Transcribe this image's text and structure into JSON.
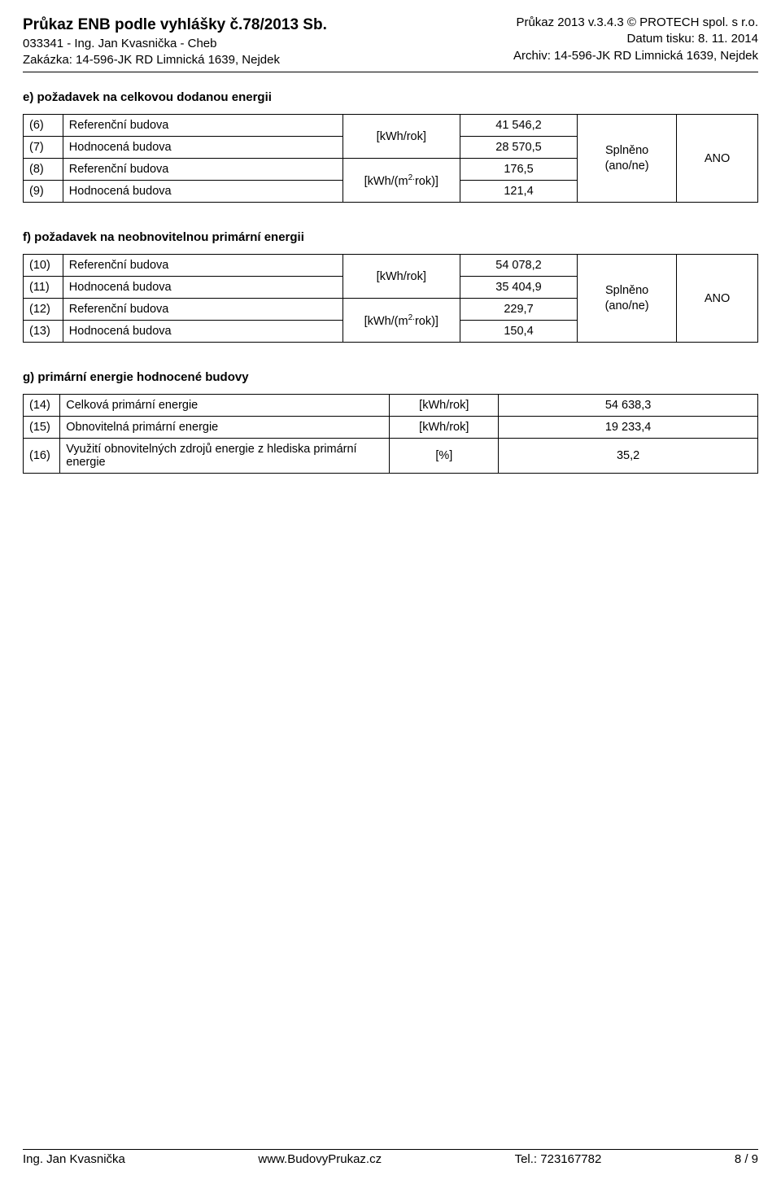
{
  "header": {
    "title_left": "Průkaz ENB podle vyhlášky č.78/2013 Sb.",
    "title_right": "Průkaz 2013 v.3.4.3 © PROTECH spol. s r.o.",
    "line2_left": "033341 - Ing. Jan Kvasnička - Cheb",
    "line2_right": "Datum tisku: 8. 11. 2014",
    "line3_left": "Zakázka: 14-596-JK RD Limnická 1639, Nejdek",
    "line3_right": "Archiv: 14-596-JK RD Limnická 1639, Nejdek"
  },
  "section_e": {
    "title": "e) požadavek na celkovou dodanou energii",
    "rows": [
      {
        "n": "(6)",
        "label": "Referenční budova",
        "val": "41 546,2"
      },
      {
        "n": "(7)",
        "label": "Hodnocená budova",
        "val": "28 570,5"
      },
      {
        "n": "(8)",
        "label": "Referenční budova",
        "val": "176,5"
      },
      {
        "n": "(9)",
        "label": "Hodnocená budova",
        "val": "121,4"
      }
    ],
    "unit1": "[kWh/rok]",
    "unit2_pre": "[kWh/(m",
    "unit2_sup": "2.",
    "unit2_post": "rok)]",
    "splneno_l1": "Splněno",
    "splneno_l2": "(ano/ne)",
    "result": "ANO"
  },
  "section_f": {
    "title": "f) požadavek na neobnovitelnou primární energii",
    "rows": [
      {
        "n": "(10)",
        "label": "Referenční budova",
        "val": "54 078,2"
      },
      {
        "n": "(11)",
        "label": "Hodnocená budova",
        "val": "35 404,9"
      },
      {
        "n": "(12)",
        "label": "Referenční budova",
        "val": "229,7"
      },
      {
        "n": "(13)",
        "label": "Hodnocená budova",
        "val": "150,4"
      }
    ],
    "unit1": "[kWh/rok]",
    "unit2_pre": "[kWh/(m",
    "unit2_sup": "2.",
    "unit2_post": "rok)]",
    "splneno_l1": "Splněno",
    "splneno_l2": "(ano/ne)",
    "result": "ANO"
  },
  "section_g": {
    "title": "g) primární energie hodnocené budovy",
    "rows": [
      {
        "n": "(14)",
        "label": "Celková primární energie",
        "unit": "[kWh/rok]",
        "val": "54 638,3"
      },
      {
        "n": "(15)",
        "label": "Obnovitelná primární energie",
        "unit": "[kWh/rok]",
        "val": "19 233,4"
      },
      {
        "n": "(16)",
        "label": "Využití obnovitelných zdrojů energie z hlediska primární energie",
        "unit": "[%]",
        "val": "35,2"
      }
    ]
  },
  "footer": {
    "left": "Ing. Jan Kvasnička",
    "center": "www.BudovyPrukaz.cz",
    "right": "Tel.: 723167782",
    "page": "8 / 9"
  }
}
